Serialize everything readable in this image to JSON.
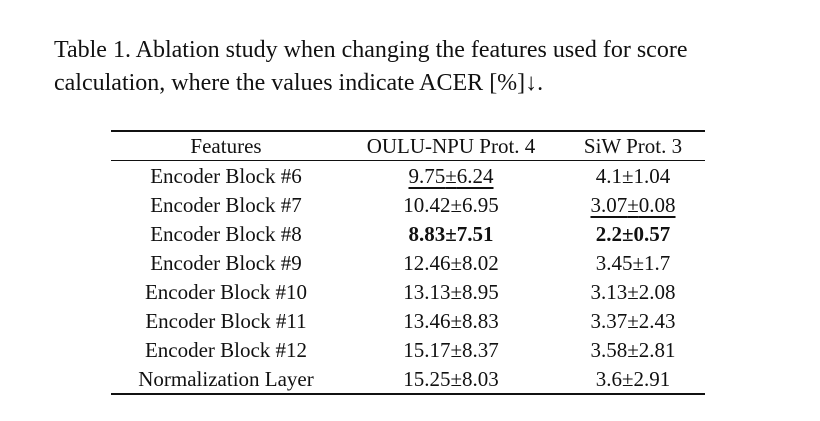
{
  "caption": {
    "line1": "Table 1. Ablation study when changing the features used for score",
    "line2": "calculation, where the values indicate ACER [%]↓."
  },
  "table": {
    "headers": [
      "Features",
      "OULU-NPU Prot. 4",
      "SiW Prot. 3"
    ],
    "rows": [
      {
        "feature": "Encoder Block #6",
        "oulu_mean": "9.75",
        "oulu_std": "6.24",
        "siw_mean": "4.1",
        "siw_std": "1.04",
        "oulu_style": "second",
        "siw_style": ""
      },
      {
        "feature": "Encoder Block #7",
        "oulu_mean": "10.42",
        "oulu_std": "6.95",
        "siw_mean": "3.07",
        "siw_std": "0.08",
        "oulu_style": "",
        "siw_style": "second"
      },
      {
        "feature": "Encoder Block #8",
        "oulu_mean": "8.83",
        "oulu_std": "7.51",
        "siw_mean": "2.2",
        "siw_std": "0.57",
        "oulu_style": "best",
        "siw_style": "best"
      },
      {
        "feature": "Encoder Block #9",
        "oulu_mean": "12.46",
        "oulu_std": "8.02",
        "siw_mean": "3.45",
        "siw_std": "1.7",
        "oulu_style": "",
        "siw_style": ""
      },
      {
        "feature": "Encoder Block #10",
        "oulu_mean": "13.13",
        "oulu_std": "8.95",
        "siw_mean": "3.13",
        "siw_std": "2.08",
        "oulu_style": "",
        "siw_style": ""
      },
      {
        "feature": "Encoder Block #11",
        "oulu_mean": "13.46",
        "oulu_std": "8.83",
        "siw_mean": "3.37",
        "siw_std": "2.43",
        "oulu_style": "",
        "siw_style": ""
      },
      {
        "feature": "Encoder Block #12",
        "oulu_mean": "15.17",
        "oulu_std": "8.37",
        "siw_mean": "3.58",
        "siw_std": "2.81",
        "oulu_style": "",
        "siw_style": ""
      },
      {
        "feature": "Normalization Layer",
        "oulu_mean": "15.25",
        "oulu_std": "8.03",
        "siw_mean": "3.6",
        "siw_std": "2.91",
        "oulu_style": "",
        "siw_style": ""
      }
    ]
  }
}
